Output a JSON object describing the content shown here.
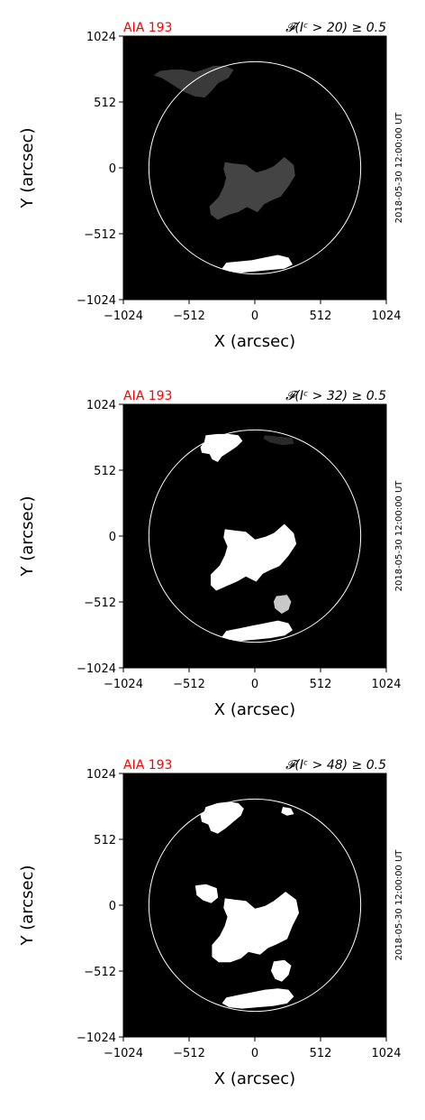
{
  "chart_data": [
    {
      "type": "heatmap",
      "instrument_label": "AIA 193",
      "title_right": "𝓕(Iᶜ > 20) ≥ 0.5",
      "threshold": 20,
      "timestamp": "2018-05-30 12:00:00 UT",
      "xlabel": "X (arcsec)",
      "ylabel": "Y (arcsec)",
      "xlim": [
        -1024,
        1024
      ],
      "ylim": [
        -1024,
        1024
      ],
      "xticks": [
        -1024,
        -512,
        0,
        512,
        1024
      ],
      "yticks": [
        -1024,
        -512,
        0,
        512,
        1024
      ],
      "xtick_labels": [
        "−1024",
        "−512",
        "0",
        "512",
        "1024"
      ],
      "ytick_labels": [
        "−1024",
        "−512",
        "0",
        "512",
        "1024"
      ],
      "solar_limb_radius_arcsec": 825,
      "colors": {
        "background": "#000000",
        "limb": "#ffffff",
        "region_main": "#444444",
        "region_pole": "#ffffff",
        "instrument_label": "#ff0000"
      },
      "regions": [
        {
          "id": "north-patch",
          "shade": "#3a3a3a",
          "polygon": [
            [
              -780,
              720
            ],
            [
              -720,
              700
            ],
            [
              -640,
              650
            ],
            [
              -560,
              600
            ],
            [
              -470,
              560
            ],
            [
              -390,
              550
            ],
            [
              -340,
              600
            ],
            [
              -290,
              660
            ],
            [
              -210,
              700
            ],
            [
              -170,
              760
            ],
            [
              -230,
              790
            ],
            [
              -320,
              790
            ],
            [
              -400,
              760
            ],
            [
              -470,
              740
            ],
            [
              -560,
              760
            ],
            [
              -650,
              760
            ],
            [
              -740,
              750
            ]
          ]
        },
        {
          "id": "central-region",
          "shade": "#444444",
          "polygon": [
            [
              -230,
              40
            ],
            [
              -160,
              30
            ],
            [
              -70,
              20
            ],
            [
              10,
              -40
            ],
            [
              80,
              -20
            ],
            [
              150,
              10
            ],
            [
              230,
              80
            ],
            [
              300,
              20
            ],
            [
              310,
              -60
            ],
            [
              260,
              -140
            ],
            [
              200,
              -220
            ],
            [
              130,
              -250
            ],
            [
              70,
              -280
            ],
            [
              20,
              -340
            ],
            [
              -60,
              -300
            ],
            [
              -130,
              -340
            ],
            [
              -200,
              -360
            ],
            [
              -290,
              -400
            ],
            [
              -340,
              -360
            ],
            [
              -350,
              -300
            ],
            [
              -280,
              -230
            ],
            [
              -240,
              -150
            ],
            [
              -220,
              -80
            ],
            [
              -240,
              -10
            ]
          ]
        },
        {
          "id": "south-pole",
          "shade": "#ffffff",
          "polygon": [
            [
              -220,
              -740
            ],
            [
              -120,
              -730
            ],
            [
              -20,
              -720
            ],
            [
              80,
              -700
            ],
            [
              180,
              -680
            ],
            [
              260,
              -700
            ],
            [
              290,
              -750
            ],
            [
              230,
              -780
            ],
            [
              120,
              -790
            ],
            [
              10,
              -800
            ],
            [
              -100,
              -810
            ],
            [
              -200,
              -800
            ],
            [
              -250,
              -780
            ]
          ]
        }
      ]
    },
    {
      "type": "heatmap",
      "instrument_label": "AIA 193",
      "title_right": "𝓕(Iᶜ > 32) ≥ 0.5",
      "threshold": 32,
      "timestamp": "2018-05-30 12:00:00 UT",
      "xlabel": "X (arcsec)",
      "ylabel": "Y (arcsec)",
      "xlim": [
        -1024,
        1024
      ],
      "ylim": [
        -1024,
        1024
      ],
      "xticks": [
        -1024,
        -512,
        0,
        512,
        1024
      ],
      "yticks": [
        -1024,
        -512,
        0,
        512,
        1024
      ],
      "xtick_labels": [
        "−1024",
        "−512",
        "0",
        "512",
        "1024"
      ],
      "ytick_labels": [
        "−1024",
        "−512",
        "0",
        "512",
        "1024"
      ],
      "solar_limb_radius_arcsec": 825,
      "colors": {
        "background": "#000000",
        "limb": "#ffffff",
        "region_main": "#ffffff",
        "region_gray": "#c8c8c8",
        "instrument_label": "#ff0000"
      },
      "regions": [
        {
          "id": "north-patch",
          "shade": "#ffffff",
          "polygon": [
            [
              -380,
              780
            ],
            [
              -290,
              790
            ],
            [
              -200,
              790
            ],
            [
              -130,
              780
            ],
            [
              -100,
              740
            ],
            [
              -140,
              700
            ],
            [
              -200,
              660
            ],
            [
              -260,
              620
            ],
            [
              -290,
              580
            ],
            [
              -330,
              600
            ],
            [
              -350,
              640
            ],
            [
              -410,
              650
            ],
            [
              -420,
              690
            ],
            [
              -390,
              730
            ]
          ]
        },
        {
          "id": "north-faint",
          "shade": "#2a2a2a",
          "polygon": [
            [
              80,
              780
            ],
            [
              180,
              770
            ],
            [
              290,
              760
            ],
            [
              300,
              720
            ],
            [
              220,
              710
            ],
            [
              120,
              730
            ],
            [
              70,
              760
            ]
          ]
        },
        {
          "id": "central-region",
          "shade": "#ffffff",
          "polygon": [
            [
              -230,
              50
            ],
            [
              -160,
              40
            ],
            [
              -70,
              30
            ],
            [
              0,
              -30
            ],
            [
              80,
              -10
            ],
            [
              150,
              20
            ],
            [
              230,
              90
            ],
            [
              300,
              20
            ],
            [
              320,
              -60
            ],
            [
              260,
              -150
            ],
            [
              190,
              -230
            ],
            [
              120,
              -260
            ],
            [
              60,
              -290
            ],
            [
              10,
              -350
            ],
            [
              -70,
              -310
            ],
            [
              -140,
              -350
            ],
            [
              -210,
              -380
            ],
            [
              -300,
              -420
            ],
            [
              -340,
              -380
            ],
            [
              -340,
              -300
            ],
            [
              -270,
              -230
            ],
            [
              -230,
              -150
            ],
            [
              -210,
              -80
            ],
            [
              -240,
              -10
            ]
          ]
        },
        {
          "id": "gray-spot",
          "shade": "#c8c8c8",
          "polygon": [
            [
              170,
              -470
            ],
            [
              250,
              -460
            ],
            [
              280,
              -510
            ],
            [
              260,
              -570
            ],
            [
              210,
              -600
            ],
            [
              160,
              -560
            ],
            [
              150,
              -510
            ]
          ]
        },
        {
          "id": "south-pole",
          "shade": "#ffffff",
          "polygon": [
            [
              -220,
              -740
            ],
            [
              -120,
              -720
            ],
            [
              -20,
              -700
            ],
            [
              80,
              -680
            ],
            [
              180,
              -660
            ],
            [
              260,
              -680
            ],
            [
              290,
              -730
            ],
            [
              230,
              -770
            ],
            [
              120,
              -790
            ],
            [
              10,
              -800
            ],
            [
              -100,
              -810
            ],
            [
              -200,
              -800
            ],
            [
              -250,
              -780
            ]
          ]
        }
      ]
    },
    {
      "type": "heatmap",
      "instrument_label": "AIA 193",
      "title_right": "𝓕(Iᶜ > 48) ≥ 0.5",
      "threshold": 48,
      "timestamp": "2018-05-30 12:00:00 UT",
      "xlabel": "X (arcsec)",
      "ylabel": "Y (arcsec)",
      "xlim": [
        -1024,
        1024
      ],
      "ylim": [
        -1024,
        1024
      ],
      "xticks": [
        -1024,
        -512,
        0,
        512,
        1024
      ],
      "yticks": [
        -1024,
        -512,
        0,
        512,
        1024
      ],
      "xtick_labels": [
        "−1024",
        "−512",
        "0",
        "512",
        "1024"
      ],
      "ytick_labels": [
        "−1024",
        "−512",
        "0",
        "512",
        "1024"
      ],
      "solar_limb_radius_arcsec": 825,
      "colors": {
        "background": "#000000",
        "limb": "#ffffff",
        "region_main": "#ffffff",
        "instrument_label": "#ff0000"
      },
      "regions": [
        {
          "id": "north-patch",
          "shade": "#ffffff",
          "polygon": [
            [
              -380,
              760
            ],
            [
              -290,
              790
            ],
            [
              -200,
              800
            ],
            [
              -130,
              790
            ],
            [
              -90,
              750
            ],
            [
              -110,
              700
            ],
            [
              -170,
              650
            ],
            [
              -230,
              600
            ],
            [
              -290,
              560
            ],
            [
              -340,
              580
            ],
            [
              -360,
              630
            ],
            [
              -410,
              650
            ],
            [
              -420,
              700
            ],
            [
              -390,
              730
            ]
          ]
        },
        {
          "id": "north-speck",
          "shade": "#ffffff",
          "polygon": [
            [
              220,
              760
            ],
            [
              280,
              750
            ],
            [
              300,
              710
            ],
            [
              250,
              700
            ],
            [
              210,
              720
            ]
          ]
        },
        {
          "id": "west-blob",
          "shade": "#ffffff",
          "polygon": [
            [
              -460,
              150
            ],
            [
              -380,
              160
            ],
            [
              -300,
              130
            ],
            [
              -290,
              60
            ],
            [
              -340,
              20
            ],
            [
              -400,
              40
            ],
            [
              -450,
              80
            ]
          ]
        },
        {
          "id": "central-region",
          "shade": "#ffffff",
          "polygon": [
            [
              -230,
              50
            ],
            [
              -160,
              40
            ],
            [
              -70,
              30
            ],
            [
              0,
              -30
            ],
            [
              80,
              -10
            ],
            [
              150,
              30
            ],
            [
              240,
              100
            ],
            [
              320,
              40
            ],
            [
              340,
              -60
            ],
            [
              290,
              -160
            ],
            [
              250,
              -260
            ],
            [
              170,
              -300
            ],
            [
              100,
              -330
            ],
            [
              40,
              -380
            ],
            [
              -50,
              -360
            ],
            [
              -110,
              -410
            ],
            [
              -190,
              -440
            ],
            [
              -280,
              -440
            ],
            [
              -330,
              -400
            ],
            [
              -330,
              -310
            ],
            [
              -270,
              -240
            ],
            [
              -230,
              -160
            ],
            [
              -210,
              -90
            ],
            [
              -240,
              -20
            ]
          ]
        },
        {
          "id": "southeast-spot",
          "shade": "#ffffff",
          "polygon": [
            [
              150,
              -440
            ],
            [
              230,
              -430
            ],
            [
              280,
              -470
            ],
            [
              260,
              -540
            ],
            [
              210,
              -590
            ],
            [
              160,
              -570
            ],
            [
              130,
              -510
            ]
          ]
        },
        {
          "id": "south-pole",
          "shade": "#ffffff",
          "polygon": [
            [
              -220,
              -720
            ],
            [
              -120,
              -700
            ],
            [
              -20,
              -680
            ],
            [
              80,
              -660
            ],
            [
              180,
              -650
            ],
            [
              260,
              -660
            ],
            [
              300,
              -710
            ],
            [
              250,
              -760
            ],
            [
              140,
              -780
            ],
            [
              20,
              -790
            ],
            [
              -100,
              -800
            ],
            [
              -200,
              -790
            ],
            [
              -250,
              -760
            ]
          ]
        }
      ]
    }
  ]
}
